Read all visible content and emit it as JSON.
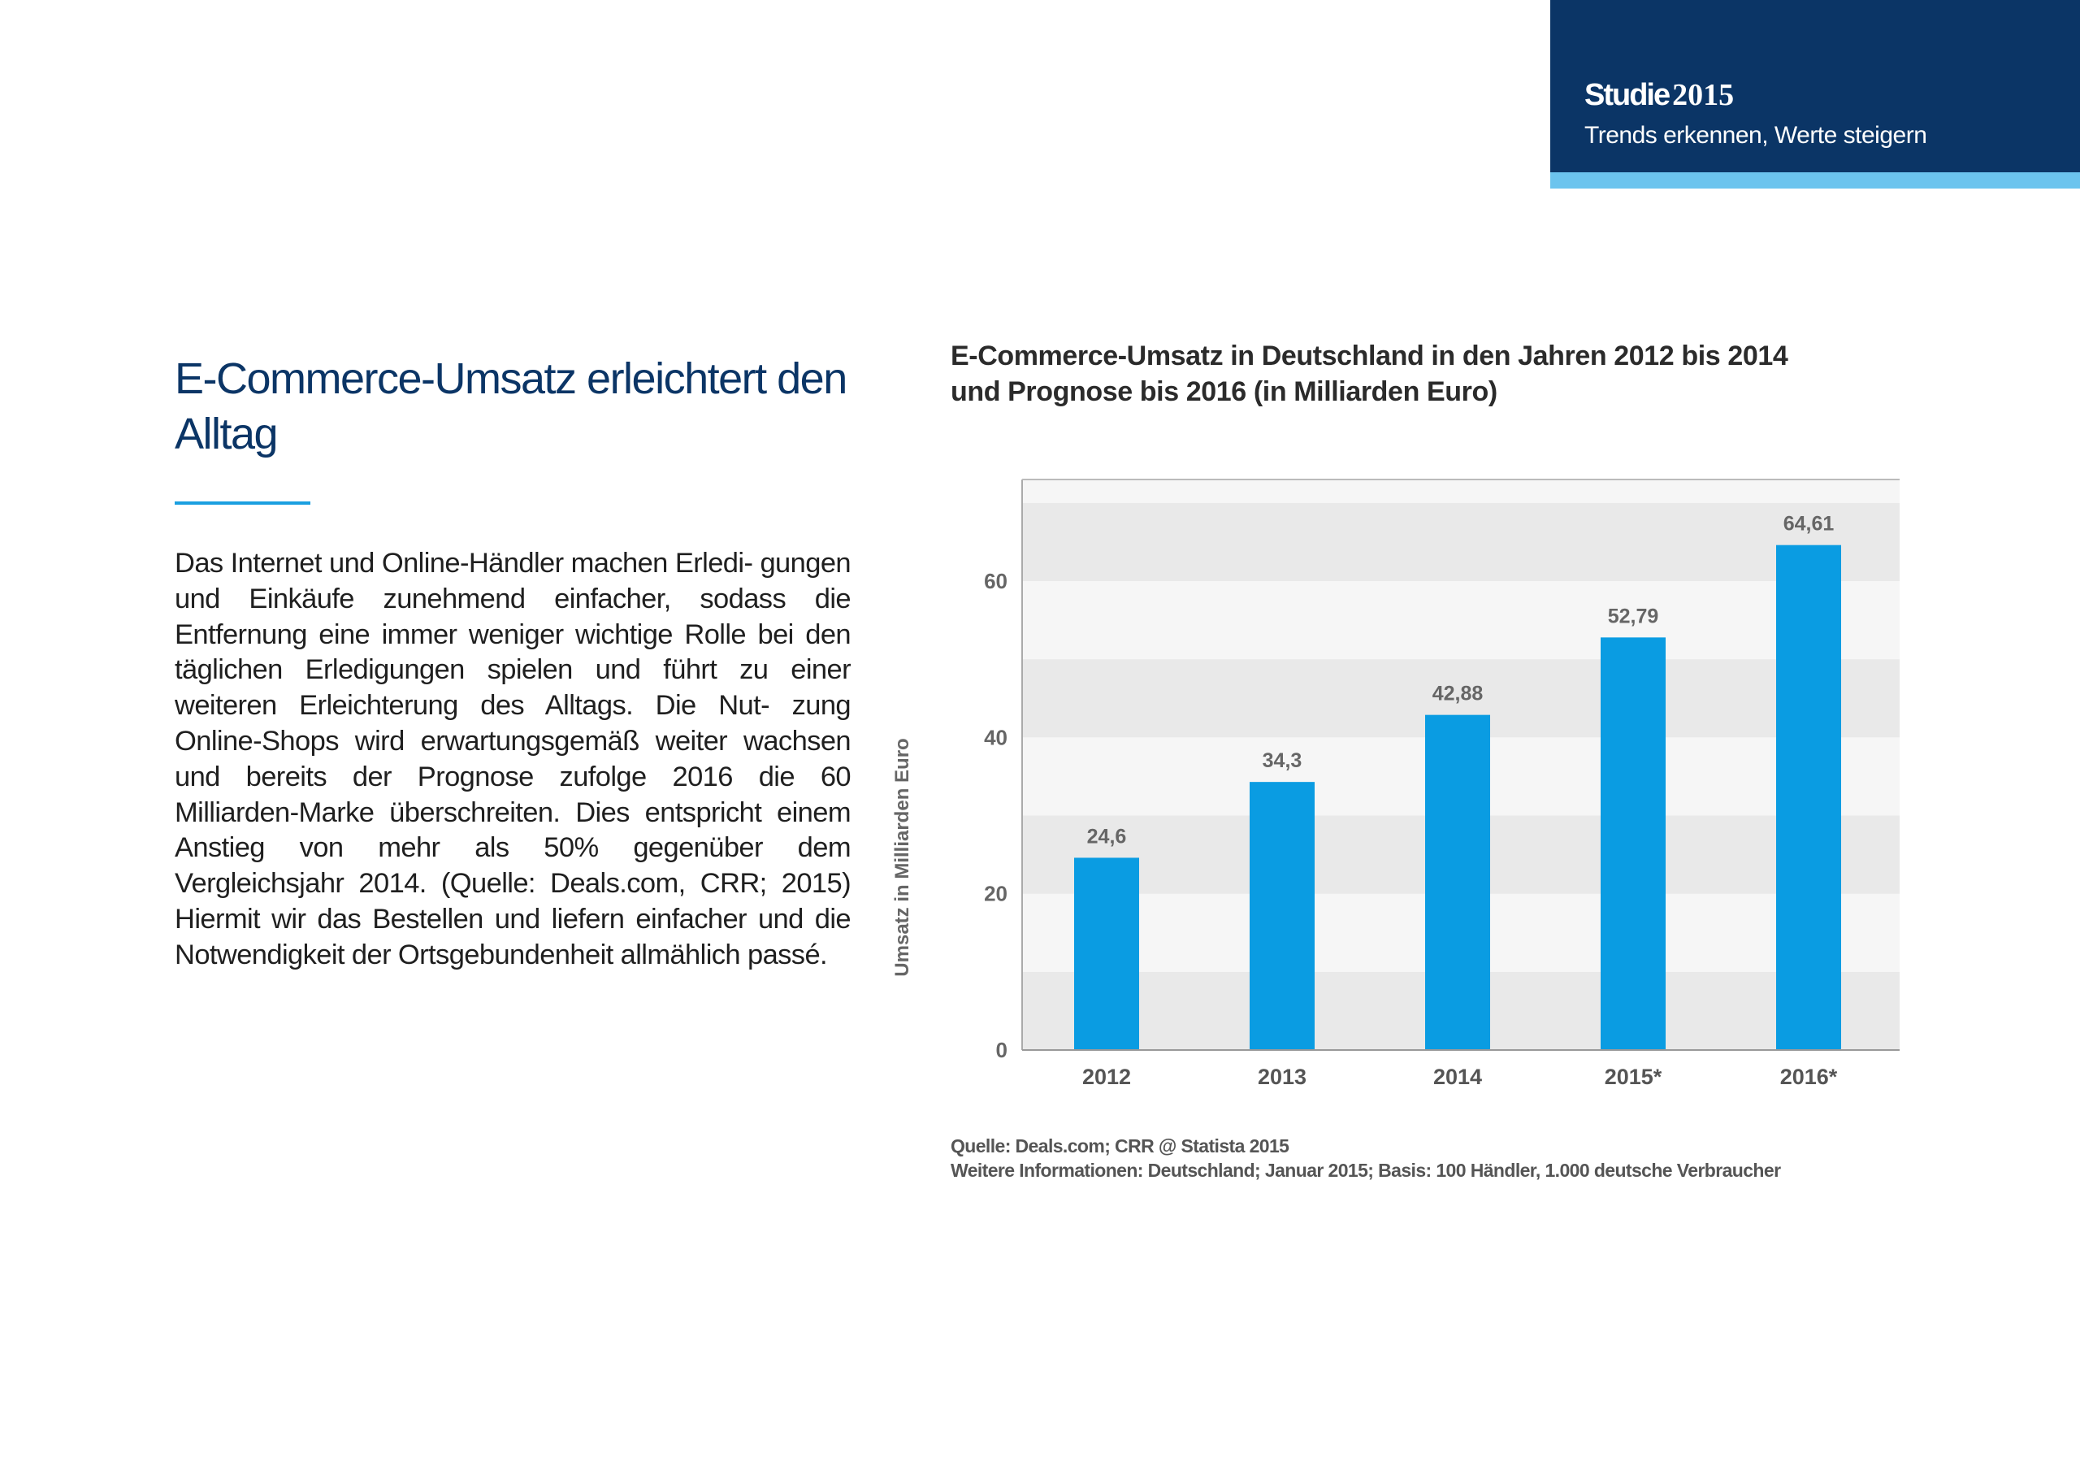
{
  "header": {
    "brand": "Studie",
    "year": "2015",
    "subtitle": "Trends erkennen, Werte steigern",
    "colors": {
      "box": "#0b3566",
      "stripe": "#6cc4ee"
    }
  },
  "page": {
    "title": "E-Commerce-Umsatz erleichtert den Alltag",
    "body": "Das Internet und Online-Händler machen Erledi- gungen und Einkäufe zunehmend einfacher, sodass die Entfernung eine immer weniger wichtige Rolle bei den täglichen Erledigungen spielen und führt zu einer weiteren Erleichterung des Alltags. Die Nut- zung Online-Shops wird erwartungsgemäß weiter wachsen und bereits der Prognose zufolge 2016 die 60 Milliarden-Marke überschreiten. Dies entspricht einem Anstieg von mehr als 50% gegenüber dem Vergleichsjahr 2014. (Quelle: Deals.com, CRR; 2015) Hiermit wir das Bestellen und liefern einfacher und die Notwendigkeit der Ortsgebundenheit allmählich passé."
  },
  "chart_data": {
    "type": "bar",
    "title": "E-Commerce-Umsatz in Deutschland in den Jahren 2012 bis 2014 und Prognose bis 2016 (in Milliarden Euro)",
    "categories": [
      "2012",
      "2013",
      "2014",
      "2015*",
      "2016*"
    ],
    "values": [
      24.6,
      34.3,
      42.88,
      52.79,
      64.61
    ],
    "value_labels": [
      "24,6",
      "34,3",
      "42,88",
      "52,79",
      "64,61"
    ],
    "xlabel": "",
    "ylabel": "Umsatz in Milliarden Euro",
    "ylim": [
      0,
      73
    ],
    "yticks": [
      0,
      20,
      40,
      60
    ],
    "grid": true,
    "bar_color": "#0a9ce2",
    "source_line1": "Quelle: Deals.com; CRR @ Statista 2015",
    "source_line2": "Weitere Informationen: Deutschland; Januar 2015; Basis: 100 Händler, 1.000 deutsche Verbraucher"
  }
}
